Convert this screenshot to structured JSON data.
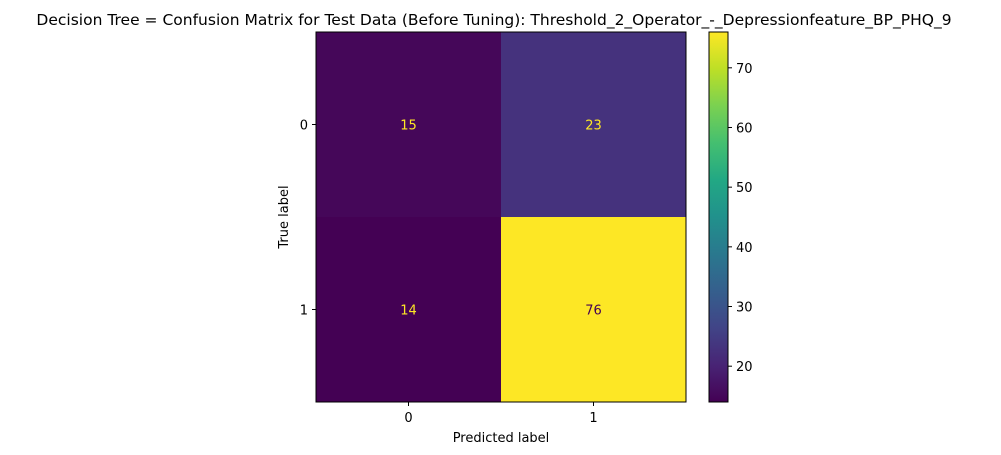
{
  "chart_data": {
    "type": "heatmap",
    "title": "Decision Tree = Confusion Matrix for Test Data (Before Tuning): Threshold_2_Operator_-_Depressionfeature_BP_PHQ_9",
    "xlabel": "Predicted label",
    "ylabel": "True label",
    "x_categories": [
      "0",
      "1"
    ],
    "y_categories": [
      "0",
      "1"
    ],
    "values": [
      [
        15,
        23
      ],
      [
        14,
        76
      ]
    ],
    "colormap": "viridis",
    "colorbar": {
      "ticks": [
        20,
        30,
        40,
        50,
        60,
        70
      ],
      "min": 14,
      "max": 76
    },
    "text_colors": {
      "on_dark": "#fde725",
      "on_light": "#440154"
    }
  }
}
